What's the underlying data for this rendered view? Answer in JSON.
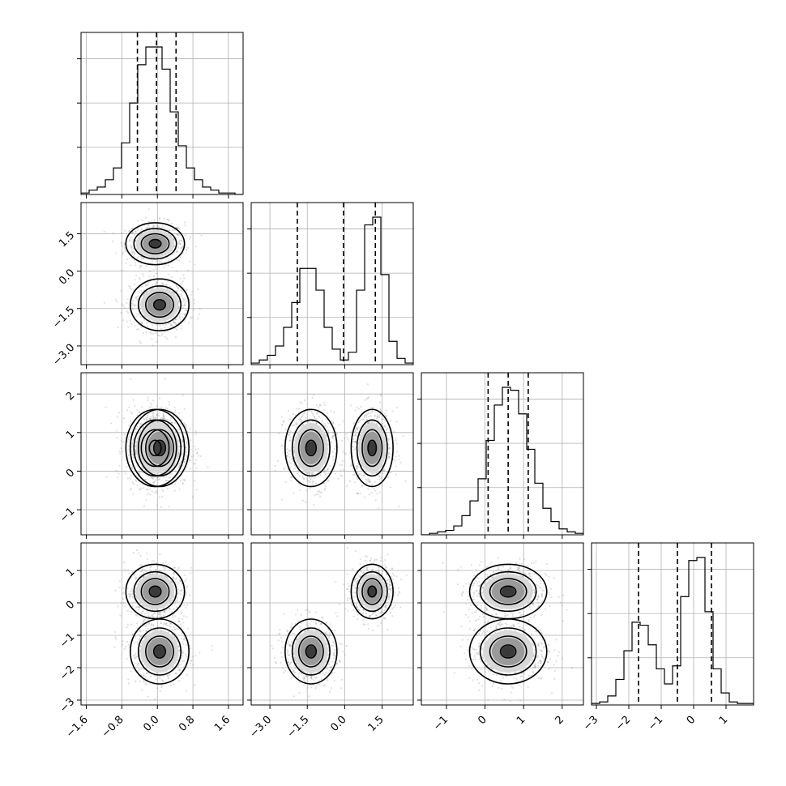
{
  "chart_data": {
    "type": "corner",
    "variables": [
      {
        "range": [
          -1.72,
          1.93
        ],
        "ticks": [
          -1.6,
          -0.8,
          0.0,
          0.8,
          1.6
        ],
        "tick_labels": [
          "−1.6",
          "−0.8",
          "0.0",
          "0.8",
          "1.6"
        ],
        "quantiles": [
          -0.45,
          -0.02,
          0.42
        ],
        "histogram": [
          1,
          3,
          5,
          10,
          18,
          35,
          62,
          88,
          100,
          100,
          85,
          56,
          33,
          18,
          10,
          5,
          3,
          1,
          1,
          0
        ]
      },
      {
        "range": [
          -3.75,
          2.75
        ],
        "ticks": [
          -3.0,
          -1.5,
          0.0,
          1.5
        ],
        "tick_labels": [
          "−3.0",
          "−1.5",
          "0.0",
          "1.5"
        ],
        "quantiles": [
          -1.9,
          -0.05,
          1.23
        ],
        "histogram": [
          1,
          3,
          6,
          12,
          24,
          40,
          62,
          62,
          48,
          24,
          10,
          3,
          8,
          48,
          90,
          95,
          58,
          15,
          4,
          1
        ]
      },
      {
        "range": [
          -1.65,
          2.55
        ],
        "ticks": [
          -1,
          0,
          1,
          2
        ],
        "tick_labels": [
          "−1",
          "0",
          "1",
          "2"
        ],
        "quantiles": [
          0.08,
          0.6,
          1.12
        ],
        "histogram": [
          0,
          1,
          2,
          3,
          6,
          13,
          23,
          38,
          64,
          88,
          100,
          98,
          82,
          58,
          35,
          18,
          9,
          4,
          2,
          1
        ]
      },
      {
        "range": [
          -3.15,
          1.85
        ],
        "ticks": [
          -3,
          -2,
          -1,
          0,
          1
        ],
        "tick_labels": [
          "−3",
          "−2",
          "−1",
          "0",
          "1"
        ],
        "quantiles": [
          -1.7,
          -0.5,
          0.55
        ],
        "histogram": [
          1,
          2,
          6,
          17,
          36,
          55,
          53,
          40,
          24,
          14,
          26,
          72,
          96,
          98,
          62,
          24,
          8,
          2,
          1,
          1
        ]
      }
    ],
    "components": [
      {
        "weight": 0.5,
        "mean": [
          -0.05,
          1.1,
          0.6,
          0.35
        ],
        "sd": [
          0.33,
          0.42,
          0.5,
          0.42
        ]
      },
      {
        "weight": 0.5,
        "mean": [
          0.05,
          -1.35,
          0.6,
          -1.5
        ],
        "sd": [
          0.33,
          0.52,
          0.5,
          0.5
        ]
      }
    ],
    "grid": true
  }
}
